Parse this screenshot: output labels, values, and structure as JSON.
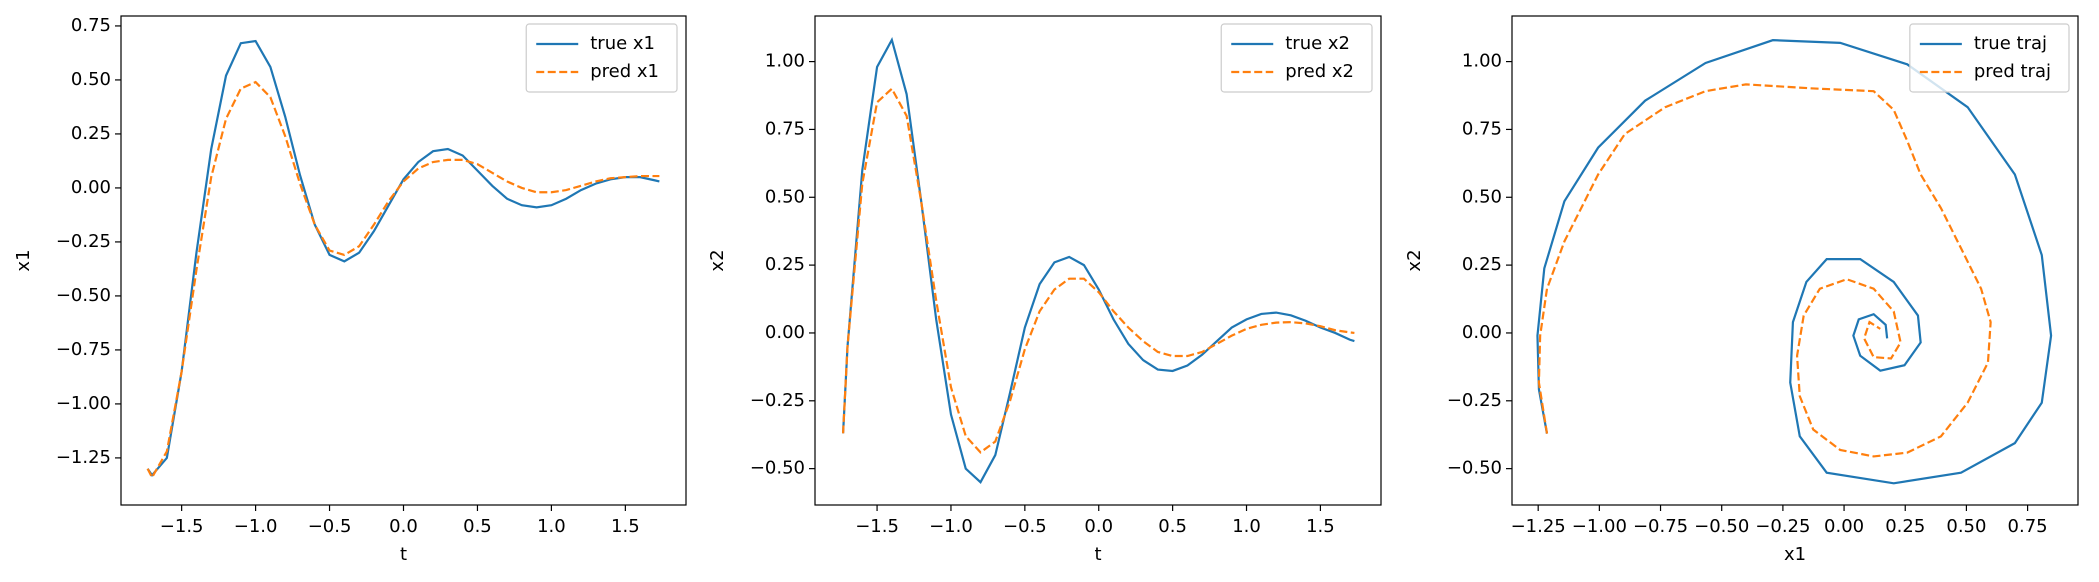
{
  "chart_data": [
    {
      "type": "line",
      "xlabel": "t",
      "ylabel": "x1",
      "legend": "upper right",
      "x": [
        -1.73,
        -1.7,
        -1.6,
        -1.5,
        -1.4,
        -1.3,
        -1.2,
        -1.1,
        -1.0,
        -0.9,
        -0.8,
        -0.7,
        -0.6,
        -0.5,
        -0.4,
        -0.3,
        -0.2,
        -0.1,
        0.0,
        0.1,
        0.2,
        0.3,
        0.4,
        0.5,
        0.6,
        0.7,
        0.8,
        0.9,
        1.0,
        1.1,
        1.2,
        1.3,
        1.4,
        1.5,
        1.6,
        1.7,
        1.73
      ],
      "series": [
        {
          "name": "true x1",
          "color": "#1f77b4",
          "dash": false,
          "values": [
            -1.3,
            -1.33,
            -1.25,
            -0.85,
            -0.3,
            0.18,
            0.52,
            0.67,
            0.68,
            0.56,
            0.33,
            0.06,
            -0.17,
            -0.31,
            -0.34,
            -0.3,
            -0.2,
            -0.08,
            0.04,
            0.12,
            0.17,
            0.18,
            0.15,
            0.08,
            0.01,
            -0.05,
            -0.08,
            -0.09,
            -0.08,
            -0.05,
            -0.01,
            0.02,
            0.04,
            0.05,
            0.05,
            0.035,
            0.03
          ]
        },
        {
          "name": "pred x1",
          "color": "#ff7f0e",
          "dash": true,
          "values": [
            -1.3,
            -1.34,
            -1.22,
            -0.85,
            -0.38,
            0.05,
            0.32,
            0.46,
            0.49,
            0.42,
            0.24,
            0.02,
            -0.17,
            -0.29,
            -0.31,
            -0.27,
            -0.17,
            -0.06,
            0.03,
            0.09,
            0.12,
            0.13,
            0.13,
            0.11,
            0.07,
            0.03,
            0.0,
            -0.02,
            -0.02,
            -0.01,
            0.01,
            0.03,
            0.045,
            0.05,
            0.055,
            0.055,
            0.055
          ]
        }
      ],
      "xlim": [
        -1.91,
        1.91
      ],
      "ylim": [
        -1.468,
        0.796
      ],
      "xticks": [
        {
          "value": -1.5,
          "label": "−1.5"
        },
        {
          "value": -1.0,
          "label": "−1.0"
        },
        {
          "value": -0.5,
          "label": "−0.5"
        },
        {
          "value": 0,
          "label": "0.0"
        },
        0.5,
        {
          "value": 1,
          "label": "1.0"
        },
        1.5
      ],
      "yticks": [
        0.75,
        {
          "value": 0.5,
          "label": "0.50"
        },
        0.25,
        {
          "value": 0,
          "label": "0.00"
        },
        {
          "value": -0.25,
          "label": "−0.25"
        },
        {
          "value": -0.5,
          "label": "−0.50"
        },
        {
          "value": -0.75,
          "label": "−0.75"
        },
        {
          "value": -1.0,
          "label": "−1.00"
        },
        {
          "value": -1.25,
          "label": "−1.25"
        }
      ]
    },
    {
      "type": "line",
      "xlabel": "t",
      "ylabel": "x2",
      "legend": "upper right",
      "x": [
        -1.73,
        -1.7,
        -1.6,
        -1.5,
        -1.4,
        -1.3,
        -1.2,
        -1.1,
        -1.0,
        -0.9,
        -0.8,
        -0.7,
        -0.6,
        -0.5,
        -0.4,
        -0.3,
        -0.2,
        -0.1,
        0.0,
        0.1,
        0.2,
        0.3,
        0.4,
        0.5,
        0.6,
        0.7,
        0.8,
        0.9,
        1.0,
        1.1,
        1.2,
        1.3,
        1.4,
        1.5,
        1.6,
        1.7,
        1.73
      ],
      "series": [
        {
          "name": "true x2",
          "color": "#1f77b4",
          "dash": false,
          "values": [
            -0.37,
            -0.05,
            0.6,
            0.98,
            1.08,
            0.88,
            0.48,
            0.05,
            -0.3,
            -0.5,
            -0.55,
            -0.45,
            -0.22,
            0.02,
            0.18,
            0.26,
            0.28,
            0.25,
            0.16,
            0.05,
            -0.04,
            -0.1,
            -0.135,
            -0.14,
            -0.12,
            -0.08,
            -0.03,
            0.02,
            0.05,
            0.07,
            0.075,
            0.065,
            0.045,
            0.02,
            0.0,
            -0.025,
            -0.03
          ]
        },
        {
          "name": "pred x2",
          "color": "#ff7f0e",
          "dash": true,
          "values": [
            -0.37,
            -0.05,
            0.55,
            0.85,
            0.9,
            0.8,
            0.48,
            0.12,
            -0.2,
            -0.38,
            -0.44,
            -0.4,
            -0.25,
            -0.06,
            0.08,
            0.16,
            0.2,
            0.2,
            0.15,
            0.08,
            0.02,
            -0.03,
            -0.07,
            -0.085,
            -0.085,
            -0.07,
            -0.04,
            -0.01,
            0.015,
            0.03,
            0.038,
            0.04,
            0.035,
            0.025,
            0.01,
            0.002,
            0.0
          ]
        }
      ],
      "xlim": [
        -1.92,
        1.91
      ],
      "ylim": [
        -0.634,
        1.168
      ],
      "xticks": [
        {
          "value": -1.5,
          "label": "−1.5"
        },
        {
          "value": -1.0,
          "label": "−1.0"
        },
        {
          "value": -0.5,
          "label": "−0.5"
        },
        {
          "value": 0,
          "label": "0.0"
        },
        0.5,
        {
          "value": 1,
          "label": "1.0"
        },
        1.5
      ],
      "yticks": [
        {
          "value": 1,
          "label": "1.00"
        },
        0.75,
        {
          "value": 0.5,
          "label": "0.50"
        },
        0.25,
        {
          "value": 0,
          "label": "0.00"
        },
        {
          "value": -0.25,
          "label": "−0.25"
        },
        {
          "value": -0.5,
          "label": "−0.50"
        }
      ]
    },
    {
      "type": "line",
      "xlabel": "x1",
      "ylabel": "x2",
      "legend": "upper right",
      "series": [
        {
          "name": "true traj",
          "color": "#1f77b4",
          "dash": false,
          "x": [
            -1.214,
            -1.247,
            -1.253,
            -1.225,
            -1.143,
            -1.005,
            -0.813,
            -0.566,
            -0.291,
            -0.016,
            0.258,
            0.505,
            0.698,
            0.808,
            0.846,
            0.808,
            0.698,
            0.478,
            0.203,
            -0.071,
            -0.181,
            -0.22,
            -0.209,
            -0.154,
            -0.071,
            0.066,
            0.203,
            0.302,
            0.313,
            0.247,
            0.148,
            0.066,
            0.038,
            0.06,
            0.121,
            0.17,
            0.176
          ],
          "values": [
            -0.371,
            -0.208,
            -0.01,
            0.238,
            0.485,
            0.683,
            0.856,
            0.995,
            1.079,
            1.069,
            0.99,
            0.832,
            0.584,
            0.287,
            -0.01,
            -0.257,
            -0.406,
            -0.515,
            -0.554,
            -0.515,
            -0.381,
            -0.183,
            0.04,
            0.188,
            0.272,
            0.272,
            0.188,
            0.064,
            -0.035,
            -0.119,
            -0.139,
            -0.084,
            -0.01,
            0.05,
            0.069,
            0.03,
            -0.02
          ]
        },
        {
          "name": "pred traj",
          "color": "#ff7f0e",
          "dash": true,
          "x": [
            -1.214,
            -1.247,
            -1.242,
            -1.214,
            -1.143,
            -1.005,
            -0.896,
            -0.731,
            -0.566,
            -0.401,
            -0.126,
            0.121,
            0.203,
            0.258,
            0.313,
            0.396,
            0.478,
            0.56,
            0.599,
            0.588,
            0.505,
            0.396,
            0.258,
            0.121,
            -0.016,
            -0.126,
            -0.181,
            -0.192,
            -0.165,
            -0.099,
            0.011,
            0.121,
            0.203,
            0.231,
            0.192,
            0.121,
            0.082,
            0.104,
            0.148
          ],
          "values": [
            -0.371,
            -0.183,
            -0.01,
            0.163,
            0.337,
            0.584,
            0.733,
            0.832,
            0.891,
            0.916,
            0.901,
            0.891,
            0.822,
            0.708,
            0.584,
            0.46,
            0.312,
            0.163,
            0.04,
            -0.109,
            -0.257,
            -0.381,
            -0.441,
            -0.455,
            -0.431,
            -0.356,
            -0.233,
            -0.084,
            0.064,
            0.163,
            0.198,
            0.163,
            0.079,
            -0.035,
            -0.094,
            -0.089,
            -0.02,
            0.04,
            0.015
          ]
        }
      ],
      "xlim": [
        -1.357,
        0.956
      ],
      "ylim": [
        -0.634,
        1.168
      ],
      "xticks": [
        {
          "value": -1.25,
          "label": "−1.25"
        },
        {
          "value": -1.0,
          "label": "−1.00"
        },
        {
          "value": -0.75,
          "label": "−0.75"
        },
        {
          "value": -0.5,
          "label": "−0.50"
        },
        {
          "value": -0.25,
          "label": "−0.25"
        },
        {
          "value": 0,
          "label": "0.00"
        },
        0.25,
        {
          "value": 0.5,
          "label": "0.50"
        },
        0.75
      ],
      "yticks": [
        {
          "value": 1,
          "label": "1.00"
        },
        0.75,
        {
          "value": 0.5,
          "label": "0.50"
        },
        0.25,
        {
          "value": 0,
          "label": "0.00"
        },
        {
          "value": -0.25,
          "label": "−0.25"
        },
        {
          "value": -0.5,
          "label": "−0.50"
        }
      ]
    }
  ]
}
